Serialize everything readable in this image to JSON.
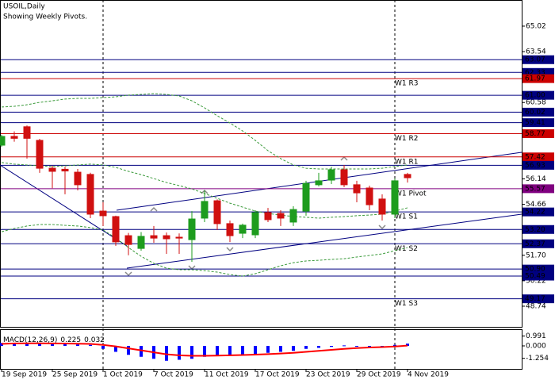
{
  "chart_data": [
    {
      "type": "candlestick",
      "title": "USOIL,Daily",
      "subtitle": "Showing Weekly Pivots.",
      "categories": [
        "19 Sep 2019",
        null,
        null,
        null,
        "25 Sep 2019",
        null,
        null,
        null,
        "1 Oct 2019",
        null,
        null,
        null,
        "7 Oct 2019",
        null,
        null,
        null,
        "11 Oct 2019",
        null,
        null,
        null,
        "17 Oct 2019",
        null,
        null,
        null,
        "23 Oct 2019",
        null,
        null,
        null,
        "29 Oct 2019",
        null,
        null,
        null,
        "4 Nov 2019"
      ],
      "open": [
        58.1,
        58.61,
        59.17,
        58.38,
        56.76,
        56.7,
        56.53,
        56.4,
        54.27,
        53.95,
        52.84,
        52.1,
        52.84,
        52.84,
        52.75,
        52.61,
        53.86,
        54.87,
        53.54,
        52.98,
        52.89,
        54.18,
        54.13,
        53.63,
        54.27,
        55.8,
        56.07,
        56.67,
        55.8,
        55.61,
        54.97,
        54.09,
        56.4
      ],
      "high": [
        58.7,
        58.9,
        59.25,
        58.47,
        56.9,
        56.85,
        56.72,
        56.5,
        54.78,
        54.0,
        53.0,
        53.05,
        53.4,
        53.02,
        52.97,
        54.27,
        55.47,
        54.95,
        53.72,
        53.54,
        54.32,
        54.45,
        54.32,
        54.55,
        56.03,
        56.49,
        56.85,
        56.95,
        56.03,
        55.75,
        55.24,
        56.17,
        56.49
      ],
      "low": [
        58.0,
        58.3,
        57.32,
        56.49,
        55.6,
        55.25,
        55.47,
        53.86,
        53.4,
        52.25,
        51.7,
        51.97,
        52.43,
        51.78,
        51.78,
        51.32,
        53.63,
        53.17,
        52.47,
        52.7,
        52.7,
        53.63,
        53.4,
        53.4,
        54.0,
        55.7,
        55.84,
        55.66,
        54.78,
        54.32,
        53.72,
        53.86,
        55.93
      ],
      "close": [
        58.61,
        58.5,
        58.5,
        56.76,
        56.58,
        56.6,
        55.8,
        54.09,
        54.0,
        52.48,
        52.33,
        52.8,
        52.7,
        52.66,
        52.7,
        53.81,
        54.83,
        53.54,
        52.84,
        53.45,
        54.18,
        53.77,
        53.86,
        54.36,
        55.88,
        56.03,
        56.67,
        55.8,
        55.33,
        54.64,
        54.09,
        56.03,
        56.21
      ],
      "up_color": "#1e9c1e",
      "down_color": "#d01010",
      "bands": [
        {
          "color": "#3a9a3a",
          "values": [
            60.32,
            60.36,
            60.45,
            60.59,
            60.68,
            60.78,
            60.82,
            60.82,
            60.87,
            60.91,
            61.01,
            61.05,
            61.1,
            61.05,
            60.96,
            60.68,
            60.27,
            59.81,
            59.39,
            58.93,
            58.38,
            57.78,
            57.32,
            56.95,
            56.76,
            56.72,
            56.72,
            56.72,
            56.72,
            56.72,
            56.76,
            56.86,
            56.95
          ]
        },
        {
          "color": "#3a9a3a",
          "values": [
            57.09,
            57.0,
            56.95,
            56.9,
            56.86,
            56.9,
            56.95,
            57.0,
            56.95,
            56.81,
            56.58,
            56.39,
            56.16,
            55.93,
            55.75,
            55.56,
            55.29,
            55.01,
            54.73,
            54.5,
            54.27,
            54.13,
            54.04,
            53.95,
            53.91,
            53.86,
            53.91,
            53.95,
            54.0,
            54.04,
            54.09,
            54.27,
            54.46
          ]
        },
        {
          "color": "#3a9a3a",
          "values": [
            53.07,
            53.26,
            53.4,
            53.49,
            53.49,
            53.44,
            53.4,
            53.31,
            53.17,
            52.71,
            52.15,
            51.64,
            51.23,
            50.95,
            50.86,
            50.86,
            50.81,
            50.72,
            50.58,
            50.49,
            50.63,
            50.86,
            51.09,
            51.27,
            51.37,
            51.41,
            51.46,
            51.5,
            51.6,
            51.69,
            51.78,
            51.97,
            52.15
          ]
        }
      ],
      "ylim": [
        47.54,
        66.54
      ],
      "yticks": [
        65.02,
        63.54,
        60.58,
        56.14,
        54.66,
        {
          "value": 51.7,
          "label": "51.70"
        },
        50.22,
        48.74
      ],
      "levels": [
        {
          "value": 63.07,
          "color": "#000080"
        },
        {
          "value": 62.33,
          "color": "#000080"
        },
        {
          "name": "W1 R3",
          "value": 61.97,
          "color": "#cc0000"
        },
        {
          "value": 61,
          "label": "61.00",
          "color": "#000080"
        },
        {
          "value": 60.02,
          "color": "#000080"
        },
        {
          "value": 59.41,
          "color": "#000080"
        },
        {
          "name": "W1 R2",
          "value": 58.77,
          "color": "#cc0000"
        },
        {
          "name": "W1 R1",
          "value": 57.42,
          "color": "#cc0000"
        },
        {
          "value": 56.93,
          "color": "#000080"
        },
        {
          "name": "W1 Pivot",
          "value": 55.57,
          "color": "#800080"
        },
        {
          "name": "W1 S1",
          "value": 54.22,
          "color": "#000080"
        },
        {
          "value": 53.2,
          "label": "53.20",
          "color": "#000080"
        },
        {
          "name": "W1 S2",
          "value": 52.37,
          "color": "#000080"
        },
        {
          "value": 50.9,
          "label": "50.90",
          "color": "#000080"
        },
        {
          "value": 50.49,
          "color": "#000080"
        },
        {
          "name": "W1 S3",
          "value": 49.17,
          "color": "#000080"
        }
      ]
    },
    {
      "type": "macd",
      "name": "MACD(12,26,9)",
      "histogram": [
        0.3,
        0.3,
        0.3,
        0.25,
        0.2,
        0.2,
        0.15,
        0.1,
        -0.3,
        -0.6,
        -0.9,
        -1.1,
        -1.3,
        -1.5,
        -1.4,
        -1.3,
        -1.1,
        -1.0,
        -1.0,
        -0.9,
        -0.8,
        -0.7,
        -0.6,
        -0.5,
        -0.3,
        -0.2,
        -0.1,
        0.05,
        0.0,
        -0.05,
        -0.1,
        0.1,
        0.225
      ],
      "signal": [
        0.2,
        0.25,
        0.26,
        0.26,
        0.25,
        0.24,
        0.22,
        0.2,
        0.1,
        -0.05,
        -0.25,
        -0.45,
        -0.65,
        -0.85,
        -0.95,
        -1.0,
        -1.0,
        -0.98,
        -0.95,
        -0.92,
        -0.88,
        -0.83,
        -0.77,
        -0.7,
        -0.6,
        -0.5,
        -0.4,
        -0.3,
        -0.22,
        -0.16,
        -0.12,
        -0.06,
        0.032
      ],
      "color": "#0000ff",
      "signal_color": "#ff0000",
      "ylim": [
        -2.32,
        1.68
      ],
      "yticks": [
        0.991,
        {
          "value": 0,
          "label": "0.000"
        },
        -1.254
      ]
    }
  ]
}
